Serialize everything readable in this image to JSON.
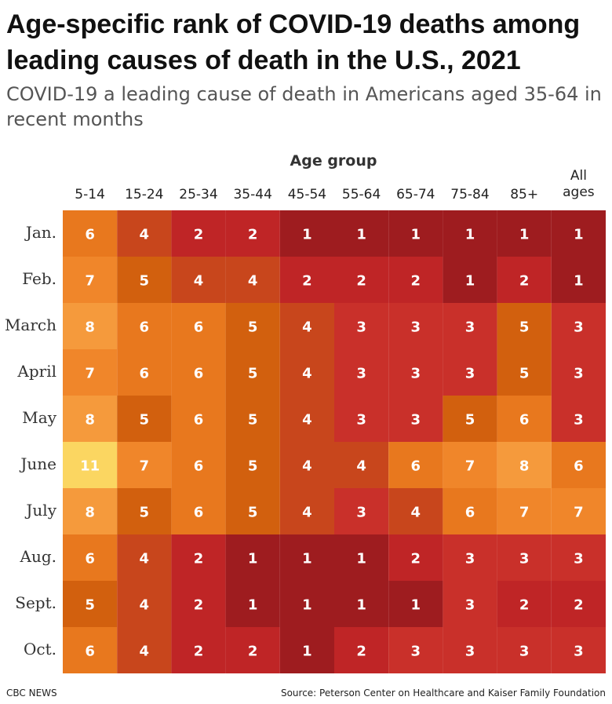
{
  "title": "Age-specific rank of COVID-19 deaths among leading causes of death in the U.S., 2021",
  "subtitle": "COVID-19 a leading cause of death in Americans aged 35-64 in recent months",
  "footer": {
    "source_left": "CBC NEWS",
    "source_right": "Source: Peterson Center on Healthcare and Kaiser Family Foundation"
  },
  "chart_data": {
    "type": "heatmap",
    "title": "Age-specific rank of COVID-19 deaths among leading causes of death in the U.S., 2021",
    "subtitle": "COVID-19 a leading cause of death in Americans aged 35-64 in recent months",
    "xlabel": "Age group",
    "ylabel": "",
    "columns": [
      "5-14",
      "15-24",
      "25-34",
      "35-44",
      "45-54",
      "55-64",
      "65-74",
      "75-84",
      "85+",
      "All ages"
    ],
    "rows": [
      "Jan.",
      "Feb.",
      "March",
      "April",
      "May",
      "June",
      "July",
      "Aug.",
      "Sept.",
      "Oct."
    ],
    "values": [
      [
        6,
        4,
        2,
        2,
        1,
        1,
        1,
        1,
        1,
        1
      ],
      [
        7,
        5,
        4,
        4,
        2,
        2,
        2,
        1,
        2,
        1
      ],
      [
        8,
        6,
        6,
        5,
        4,
        3,
        3,
        3,
        5,
        3
      ],
      [
        7,
        6,
        6,
        5,
        4,
        3,
        3,
        3,
        5,
        3
      ],
      [
        8,
        5,
        6,
        5,
        4,
        3,
        3,
        5,
        6,
        3
      ],
      [
        11,
        7,
        6,
        5,
        4,
        4,
        6,
        7,
        8,
        6
      ],
      [
        8,
        5,
        6,
        5,
        4,
        3,
        4,
        6,
        7,
        7
      ],
      [
        6,
        4,
        2,
        1,
        1,
        1,
        2,
        3,
        3,
        3
      ],
      [
        5,
        4,
        2,
        1,
        1,
        1,
        1,
        3,
        2,
        2
      ],
      [
        6,
        4,
        2,
        2,
        1,
        2,
        3,
        3,
        3,
        3
      ]
    ],
    "color_scale": {
      "1": "#9e1c1f",
      "2": "#bf2526",
      "3": "#c9302a",
      "4": "#c8461c",
      "5": "#d2600e",
      "6": "#e8781e",
      "7": "#f0862a",
      "8": "#f59a3c",
      "11": "#fbd661"
    }
  }
}
